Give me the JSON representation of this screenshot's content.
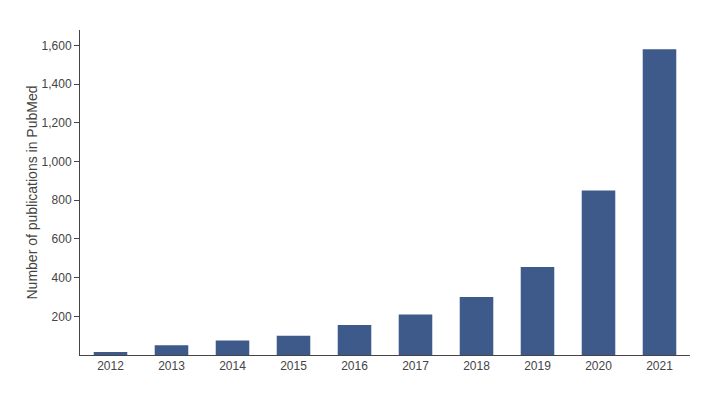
{
  "chart_data": {
    "type": "bar",
    "ylabel": "Number of publications in PubMed",
    "categories": [
      "2012",
      "2013",
      "2014",
      "2015",
      "2016",
      "2017",
      "2018",
      "2019",
      "2020",
      "2021"
    ],
    "values": [
      15,
      50,
      75,
      100,
      155,
      210,
      300,
      455,
      850,
      1580
    ],
    "color": "#3d5a8a",
    "ylim": [
      0,
      1680
    ],
    "yticks": [
      200,
      400,
      600,
      800,
      {
        "value": 1000,
        "label": "1,000"
      },
      {
        "value": 1200,
        "label": "1,200"
      },
      {
        "value": 1400,
        "label": "1,400"
      },
      {
        "value": 1600,
        "label": "1,600"
      }
    ],
    "grid": false
  }
}
